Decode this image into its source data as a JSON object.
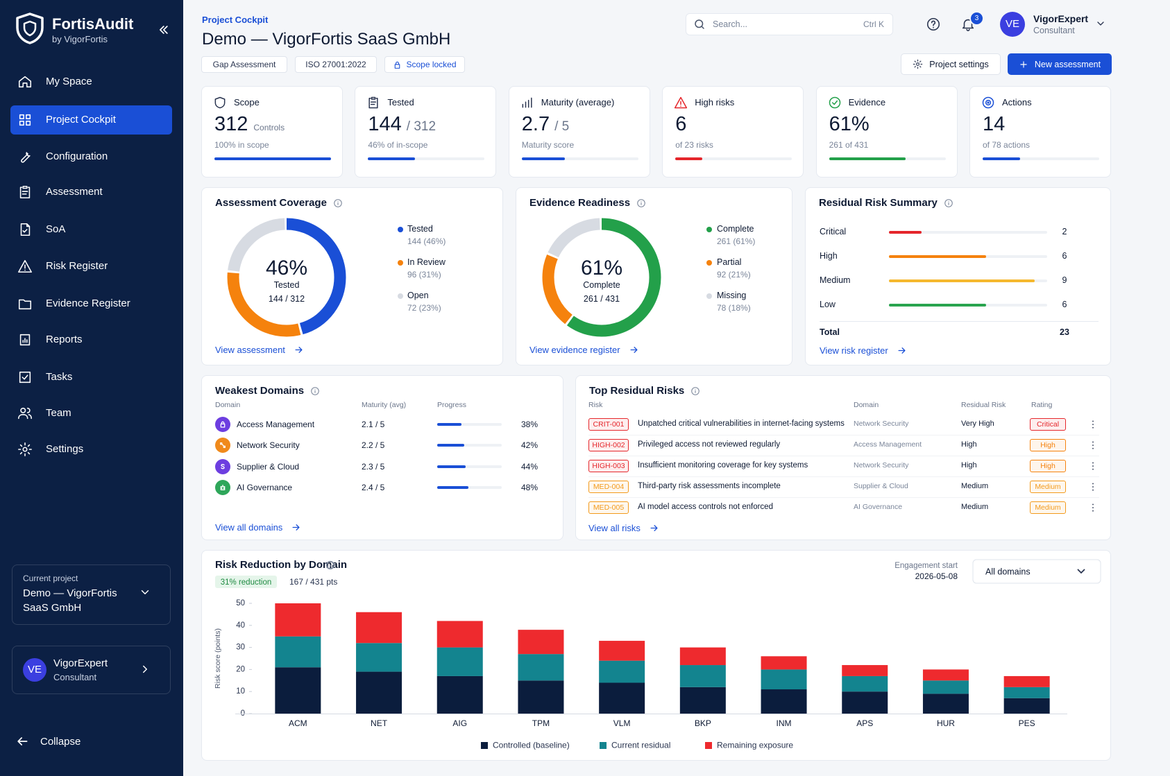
{
  "sidebar": {
    "brand": "FortisAudit",
    "brand_sub": "by VigorFortis",
    "nav": [
      "My Space",
      "Project Cockpit",
      "Configuration",
      "Assessment",
      "SoA",
      "Risk Register",
      "Evidence Register",
      "Reports",
      "Tasks",
      "Team",
      "Settings"
    ],
    "current_project_label": "Current project",
    "current_project": "Demo — VigorFortis SaaS GmbH",
    "user_initials": "VE",
    "user_name": "VigorExpert",
    "user_role": "Consultant",
    "collapse": "Collapse"
  },
  "header": {
    "breadcrumb": "Project Cockpit",
    "title": "Demo — VigorFortis SaaS GmbH",
    "tags": [
      "Gap Assessment",
      "ISO 27001:2022",
      "Scope locked"
    ],
    "search_placeholder": "Search...",
    "search_shortcut": "Ctrl K",
    "notification_count": 3,
    "user_initials": "VE",
    "user_name": "VigorExpert",
    "user_role": "Consultant",
    "buttons": [
      "Project settings",
      "New assessment"
    ]
  },
  "kpis": [
    {
      "label": "Scope",
      "value": 312,
      "unit": "Controls",
      "note": "100% in scope",
      "progress": 100,
      "color": "#1a4fd6"
    },
    {
      "label": "Tested",
      "value": 144,
      "of": "/ 312",
      "note": "46% of in-scope",
      "progress": 40,
      "color": "#1a4fd6"
    },
    {
      "label": "Maturity (average)",
      "value": 2.7,
      "of": "/ 5",
      "note": "Maturity score",
      "progress": 37,
      "color": "#1a4fd6"
    },
    {
      "label": "High risks",
      "value": 6,
      "note": "of 23 risks",
      "progress": 23,
      "color": "#e5262b"
    },
    {
      "label": "Evidence",
      "value": "61%",
      "note": "261 of 431",
      "progress": 66,
      "color": "#23a04a"
    },
    {
      "label": "Actions",
      "value": 14,
      "note": "of 78 actions",
      "progress": 32,
      "color": "#1a4fd6"
    }
  ],
  "coverage": {
    "title": "Assessment Coverage",
    "center": "46%",
    "center_label": "Tested",
    "center_sub": "144 / 312",
    "segments": [
      {
        "name": "Tested",
        "value": 144,
        "label": "144 (46%)",
        "color": "#1a4fd6"
      },
      {
        "name": "In Review",
        "value": 96,
        "label": "96 (31%)",
        "color": "#f5820d"
      },
      {
        "name": "Open",
        "value": 72,
        "label": "72 (23%)",
        "color": "#d7dbe2"
      }
    ],
    "link": "View assessment"
  },
  "evidence": {
    "title": "Evidence Readiness",
    "center": "61%",
    "center_label": "Complete",
    "center_sub": "261 / 431",
    "segments": [
      {
        "name": "Complete",
        "value": 261,
        "label": "261 (61%)",
        "color": "#23a04a"
      },
      {
        "name": "Partial",
        "value": 92,
        "label": "92 (21%)",
        "color": "#f5820d"
      },
      {
        "name": "Missing",
        "value": 78,
        "label": "78 (18%)",
        "color": "#d7dbe2"
      }
    ],
    "link": "View evidence register"
  },
  "risk_summary": {
    "title": "Residual Risk Summary",
    "rows": [
      {
        "name": "Critical",
        "value": 2,
        "color": "#e5262b"
      },
      {
        "name": "High",
        "value": 6,
        "color": "#f5820d"
      },
      {
        "name": "Medium",
        "value": 9,
        "color": "#f5b82e"
      },
      {
        "name": "Low",
        "value": 6,
        "color": "#2aa44f"
      }
    ],
    "total_label": "Total",
    "total": 23,
    "link": "View risk register"
  },
  "weakest_domains": {
    "title": "Weakest Domains",
    "columns": [
      "Domain",
      "Maturity (avg)",
      "Progress"
    ],
    "rows": [
      {
        "domain": "Access Management",
        "maturity": "2.1 / 5",
        "progress": 38,
        "progress_label": "38%",
        "color": "#6d3ee0"
      },
      {
        "domain": "Network Security",
        "maturity": "2.2 / 5",
        "progress": 42,
        "progress_label": "42%",
        "color": "#f08a1c"
      },
      {
        "domain": "Supplier & Cloud",
        "maturity": "2.3 / 5",
        "progress": 44,
        "progress_label": "44%",
        "color": "#6d3ee0"
      },
      {
        "domain": "AI Governance",
        "maturity": "2.4 / 5",
        "progress": 48,
        "progress_label": "48%",
        "color": "#2ea65a"
      }
    ],
    "link": "View all domains"
  },
  "top_risks": {
    "title": "Top Residual Risks",
    "columns": [
      "Risk",
      "Domain",
      "Residual Risk",
      "Rating"
    ],
    "rows": [
      {
        "id": "CRIT-001",
        "title": "Unpatched critical vulnerabilities in internet-facing systems",
        "domain": "Network Security",
        "residual": "Very High",
        "rating": "Critical",
        "color": "#e5262b",
        "rating_color": "#e5262b"
      },
      {
        "id": "HIGH-002",
        "title": "Privileged access not reviewed regularly",
        "domain": "Access Management",
        "residual": "High",
        "rating": "High",
        "color": "#e5262b",
        "rating_color": "#f5820d"
      },
      {
        "id": "HIGH-003",
        "title": "Insufficient monitoring coverage for key systems",
        "domain": "Network Security",
        "residual": "High",
        "rating": "High",
        "color": "#e5262b",
        "rating_color": "#f5820d"
      },
      {
        "id": "MED-004",
        "title": "Third-party risk assessments incomplete",
        "domain": "Supplier & Cloud",
        "residual": "Medium",
        "rating": "Medium",
        "color": "#f39a1b",
        "rating_color": "#f39a1b"
      },
      {
        "id": "MED-005",
        "title": "AI model access controls not enforced",
        "domain": "AI Governance",
        "residual": "Medium",
        "rating": "Medium",
        "color": "#f39a1b",
        "rating_color": "#f39a1b"
      }
    ],
    "link": "View all risks"
  },
  "chart_data": {
    "type": "bar",
    "stacked": true,
    "title": "Risk Reduction by Domain",
    "badge": "31% reduction",
    "summary": "167 / 431 pts",
    "engagement_label": "Engagement start",
    "engagement_date": "2026-05-08",
    "filter": "All domains",
    "y_label": "Risk score (points)",
    "categories": [
      "ACM",
      "NET",
      "AIG",
      "TPM",
      "VLM",
      "BKP",
      "INM",
      "APS",
      "HUR",
      "PES"
    ],
    "series": [
      {
        "name": "Controlled (baseline)",
        "color": "#0b1d3d",
        "values": [
          21,
          19,
          17,
          15,
          14,
          12,
          11,
          10,
          9,
          7
        ]
      },
      {
        "name": "Current residual",
        "color": "#13848f",
        "values": [
          14,
          13,
          13,
          12,
          10,
          10,
          9,
          7,
          6,
          5
        ]
      },
      {
        "name": "Remaining exposure",
        "color": "#ee2a2e",
        "values": [
          15,
          14,
          12,
          11,
          9,
          8,
          6,
          5,
          5,
          5
        ]
      }
    ],
    "ylim": [
      0,
      50
    ],
    "yticks": [
      0,
      10,
      20,
      30,
      40,
      50
    ],
    "grid": false
  }
}
